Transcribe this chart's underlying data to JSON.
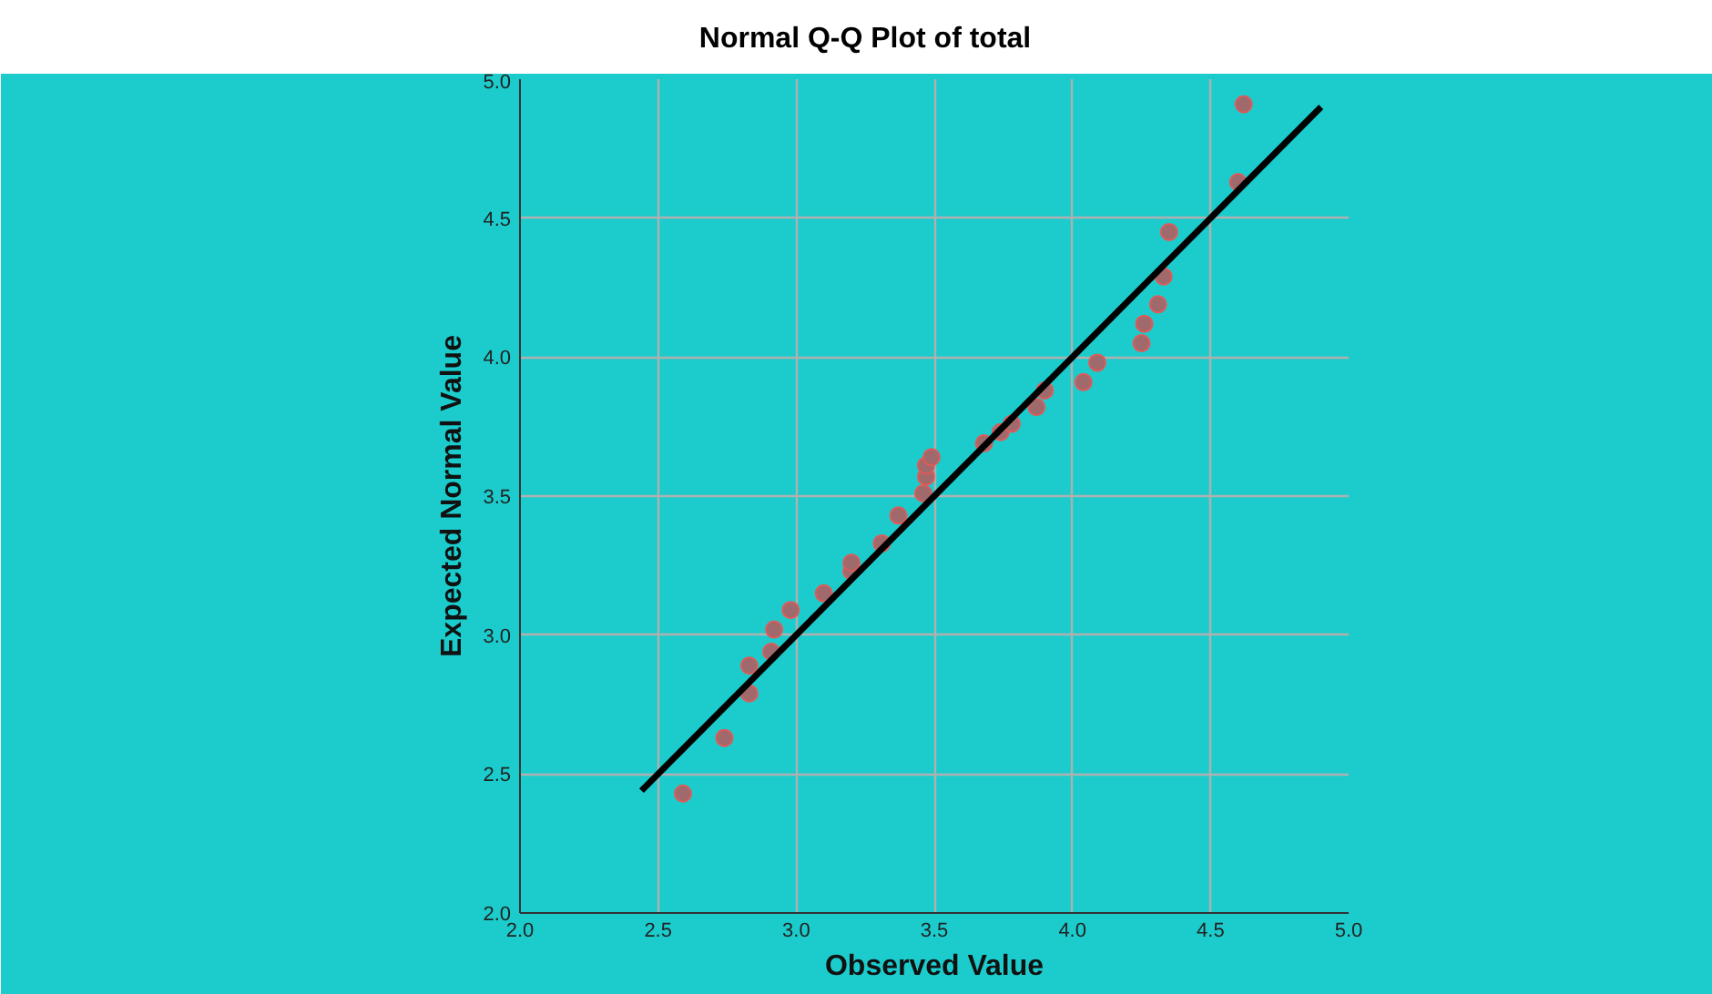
{
  "chart_data": {
    "type": "scatter",
    "title": "Normal Q-Q Plot of total",
    "xlabel": "Observed Value",
    "ylabel": "Expected Normal Value",
    "xlim": [
      2.0,
      5.0
    ],
    "ylim": [
      2.0,
      5.0
    ],
    "xticks": [
      {
        "value": 2.0,
        "label": "2.0"
      },
      {
        "value": 2.5,
        "label": "2.5"
      },
      {
        "value": 3.0,
        "label": "3.0"
      },
      {
        "value": 3.5,
        "label": "3.5"
      },
      {
        "value": 4.0,
        "label": "4.0"
      },
      {
        "value": 4.5,
        "label": "4.5"
      },
      {
        "value": 5.0,
        "label": "5.0"
      }
    ],
    "yticks": [
      {
        "value": 2.0,
        "label": "2.0"
      },
      {
        "value": 2.5,
        "label": "2.5"
      },
      {
        "value": 3.0,
        "label": "3.0"
      },
      {
        "value": 3.5,
        "label": "3.5"
      },
      {
        "value": 4.0,
        "label": "4.0"
      },
      {
        "value": 4.5,
        "label": "4.5"
      },
      {
        "value": 5.0,
        "label": "5.0"
      }
    ],
    "grid": true,
    "series": [
      {
        "color": "#a0696c",
        "marker": "circle",
        "x": [
          2.59,
          2.74,
          2.83,
          2.83,
          2.91,
          2.92,
          2.98,
          3.1,
          3.2,
          3.2,
          3.31,
          3.37,
          3.46,
          3.47,
          3.47,
          3.49,
          3.68,
          3.74,
          3.78,
          3.87,
          3.9,
          4.04,
          4.09,
          4.25,
          4.26,
          4.31,
          4.33,
          4.35,
          4.6,
          4.62
        ],
        "values": [
          2.43,
          2.63,
          2.79,
          2.89,
          2.94,
          3.02,
          3.09,
          3.15,
          3.23,
          3.26,
          3.33,
          3.43,
          3.51,
          3.57,
          3.61,
          3.64,
          3.69,
          3.73,
          3.76,
          3.82,
          3.88,
          3.91,
          3.98,
          4.05,
          4.12,
          4.19,
          4.29,
          4.45,
          4.63,
          4.91
        ]
      },
      {
        "type": "line",
        "color": "#000000",
        "x": [
          2.44,
          4.9
        ],
        "values": [
          2.44,
          4.9
        ],
        "marker": "none"
      }
    ]
  }
}
